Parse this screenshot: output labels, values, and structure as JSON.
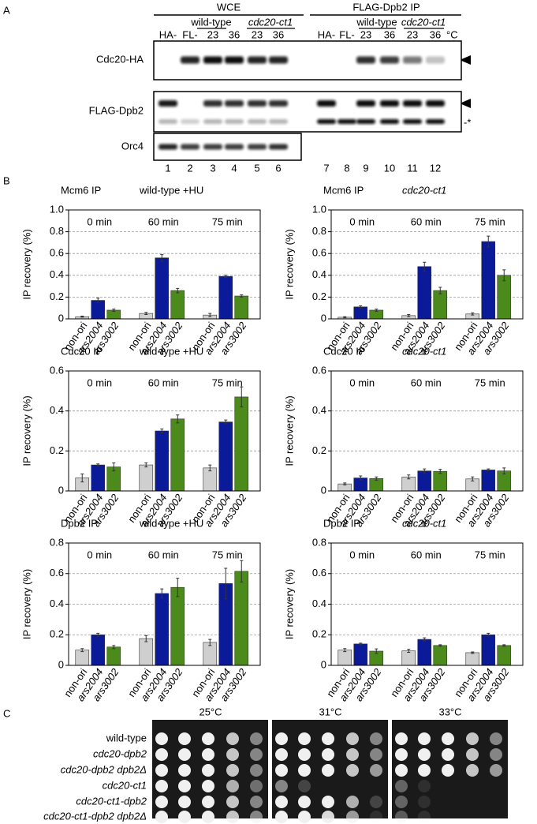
{
  "panel_a": {
    "label": "A",
    "headers": [
      "WCE",
      "FLAG-Dpb2 IP"
    ],
    "groups": [
      "wild-type",
      "cdc20-ct1",
      "wild-type",
      "cdc20-ct1"
    ],
    "lane_labels": [
      "HA-",
      "FL-",
      "23",
      "36",
      "23",
      "36",
      "HA-",
      "FL-",
      "23",
      "36",
      "23",
      "36"
    ],
    "unit": "°C",
    "rows": [
      "Cdc20-HA",
      "FLAG-Dpb2",
      "Orc4"
    ],
    "marker": "-*",
    "lanes": [
      "1",
      "2",
      "3",
      "4",
      "5",
      "6",
      "7",
      "8",
      "9",
      "10",
      "11",
      "12"
    ]
  },
  "panel_b_label": "B",
  "chart_data": [
    {
      "type": "bar",
      "title": "Mcm6 IP",
      "subtitle": "wild-type +HU",
      "y_label": "IP recovery (%)",
      "categories": [
        "0 min",
        "60 min",
        "75 min"
      ],
      "ylim": [
        0,
        1
      ],
      "yticks": [
        0,
        0.2,
        0.4,
        0.6,
        0.8,
        {
          "value": 1,
          "label": "1.0"
        }
      ],
      "grid": true,
      "series": [
        {
          "name": "non-ori",
          "color": "#cfcfcf",
          "values": [
            0.02,
            0.05,
            0.035
          ],
          "errors": [
            0.005,
            0.01,
            0.015
          ]
        },
        {
          "name": "ars2004",
          "color": "#0b1a98",
          "values": [
            0.17,
            0.56,
            0.39
          ],
          "errors": [
            0.02,
            0.03,
            0.01
          ]
        },
        {
          "name": "ars3002",
          "color": "#4b8a1b",
          "values": [
            0.08,
            0.26,
            0.21
          ],
          "errors": [
            0.01,
            0.02,
            0.01
          ]
        }
      ]
    },
    {
      "type": "bar",
      "title": "Mcm6 IP",
      "subtitle": "cdc20-ct1",
      "y_label": "IP recovery (%)",
      "categories": [
        "0 min",
        "60 min",
        "75 min"
      ],
      "ylim": [
        0,
        1
      ],
      "yticks": [
        0,
        0.2,
        0.4,
        0.6,
        0.8,
        {
          "value": 1,
          "label": "1.0"
        }
      ],
      "grid": true,
      "series": [
        {
          "name": "non-ori",
          "color": "#cfcfcf",
          "values": [
            0.015,
            0.03,
            0.045
          ],
          "errors": [
            0.005,
            0.01,
            0.01
          ]
        },
        {
          "name": "ars2004",
          "color": "#0b1a98",
          "values": [
            0.11,
            0.48,
            0.71
          ],
          "errors": [
            0.01,
            0.04,
            0.05
          ]
        },
        {
          "name": "ars3002",
          "color": "#4b8a1b",
          "values": [
            0.08,
            0.26,
            0.4
          ],
          "errors": [
            0.01,
            0.03,
            0.05
          ]
        }
      ]
    },
    {
      "type": "bar",
      "title": "Cdc20 IP",
      "subtitle": "wild-type +HU",
      "y_label": "IP recovery (%)",
      "categories": [
        "0 min",
        "60 min",
        "75 min"
      ],
      "ylim": [
        0,
        0.6
      ],
      "yticks": [
        0,
        0.2,
        0.4,
        0.6
      ],
      "grid": true,
      "series": [
        {
          "name": "non-ori",
          "color": "#cfcfcf",
          "values": [
            0.065,
            0.13,
            0.115
          ],
          "errors": [
            0.02,
            0.01,
            0.015
          ]
        },
        {
          "name": "ars2004",
          "color": "#0b1a98",
          "values": [
            0.13,
            0.3,
            0.345
          ],
          "errors": [
            0.005,
            0.01,
            0.01
          ]
        },
        {
          "name": "ars3002",
          "color": "#4b8a1b",
          "values": [
            0.12,
            0.36,
            0.47
          ],
          "errors": [
            0.02,
            0.02,
            0.05
          ]
        }
      ]
    },
    {
      "type": "bar",
      "title": "Cdc20 IP",
      "subtitle": "cdc20-ct1",
      "y_label": "IP recovery (%)",
      "categories": [
        "0 min",
        "60 min",
        "75 min"
      ],
      "ylim": [
        0,
        0.6
      ],
      "yticks": [
        0,
        0.2,
        0.4,
        0.6
      ],
      "grid": true,
      "series": [
        {
          "name": "non-ori",
          "color": "#cfcfcf",
          "values": [
            0.035,
            0.07,
            0.06
          ],
          "errors": [
            0.005,
            0.01,
            0.01
          ]
        },
        {
          "name": "ars2004",
          "color": "#0b1a98",
          "values": [
            0.065,
            0.1,
            0.105
          ],
          "errors": [
            0.01,
            0.01,
            0.005
          ]
        },
        {
          "name": "ars3002",
          "color": "#4b8a1b",
          "values": [
            0.062,
            0.098,
            0.1
          ],
          "errors": [
            0.008,
            0.01,
            0.015
          ]
        }
      ]
    },
    {
      "type": "bar",
      "title": "Dpb2 IP",
      "subtitle": "wild-type +HU",
      "y_label": "IP recovery (%)",
      "categories": [
        "0 min",
        "60 min",
        "75 min"
      ],
      "ylim": [
        0,
        0.8
      ],
      "yticks": [
        0,
        0.2,
        0.4,
        0.6,
        0.8
      ],
      "grid": true,
      "series": [
        {
          "name": "non-ori",
          "color": "#cfcfcf",
          "values": [
            0.1,
            0.175,
            0.15
          ],
          "errors": [
            0.01,
            0.02,
            0.02
          ]
        },
        {
          "name": "ars2004",
          "color": "#0b1a98",
          "values": [
            0.2,
            0.47,
            0.535
          ],
          "errors": [
            0.01,
            0.03,
            0.1
          ]
        },
        {
          "name": "ars3002",
          "color": "#4b8a1b",
          "values": [
            0.12,
            0.51,
            0.615
          ],
          "errors": [
            0.01,
            0.06,
            0.07
          ]
        }
      ]
    },
    {
      "type": "bar",
      "title": "Dpb2 IP",
      "subtitle": "cdc20-ct1",
      "y_label": "IP recovery (%)",
      "categories": [
        "0 min",
        "60 min",
        "75 min"
      ],
      "ylim": [
        0,
        0.8
      ],
      "yticks": [
        0,
        0.2,
        0.4,
        0.6,
        0.8
      ],
      "grid": true,
      "series": [
        {
          "name": "non-ori",
          "color": "#cfcfcf",
          "values": [
            0.1,
            0.095,
            0.083
          ],
          "errors": [
            0.01,
            0.01,
            0.005
          ]
        },
        {
          "name": "ars2004",
          "color": "#0b1a98",
          "values": [
            0.14,
            0.17,
            0.2
          ],
          "errors": [
            0.005,
            0.01,
            0.01
          ]
        },
        {
          "name": "ars3002",
          "color": "#4b8a1b",
          "values": [
            0.093,
            0.13,
            0.13
          ],
          "errors": [
            0.015,
            0.005,
            0.005
          ]
        }
      ]
    }
  ],
  "panel_c": {
    "label": "C",
    "temperatures": [
      "25°C",
      "31°C",
      "33°C"
    ],
    "strains": [
      "wild-type",
      "cdc20-dpb2",
      "cdc20-dpb2  dpb2Δ",
      "cdc20-ct1",
      "cdc20-ct1-dpb2",
      "cdc20-ct1-dpb2  dpb2Δ"
    ]
  }
}
